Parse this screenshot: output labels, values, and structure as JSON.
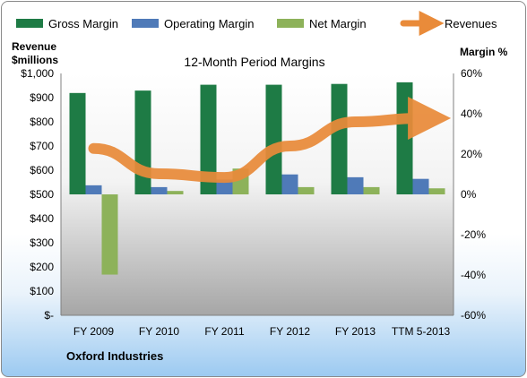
{
  "chart_data": {
    "type": "bar",
    "title": "12-Month Period Margins",
    "company": "Oxford Industries",
    "left_axis_label_line1": "Revenue",
    "left_axis_label_line2": "$millions",
    "right_axis_label": "Margin %",
    "categories": [
      "FY 2009",
      "FY 2010",
      "FY 2011",
      "FY 2012",
      "FY 2013",
      "TTM 5-2013"
    ],
    "left_ticks": [
      "$1,000",
      "$900",
      "$800",
      "$700",
      "$600",
      "$500",
      "$400",
      "$300",
      "$200",
      "$100",
      "$-"
    ],
    "right_ticks": [
      "60%",
      "40%",
      "20%",
      "0%",
      "-20%",
      "-40%",
      "-60%"
    ],
    "ylim_left": [
      0,
      1000
    ],
    "ylim_right": [
      -60,
      60
    ],
    "series": [
      {
        "name": "Gross Margin",
        "axis": "right",
        "color": "#1e7b45",
        "values": [
          50.3,
          51.5,
          54.4,
          54.4,
          54.8,
          55.6
        ]
      },
      {
        "name": "Operating Margin",
        "axis": "right",
        "color": "#4f7ab8",
        "values": [
          4.5,
          3.6,
          7.4,
          9.9,
          8.5,
          7.7
        ]
      },
      {
        "name": "Net Margin",
        "axis": "right",
        "color": "#8db25a",
        "values": [
          -39.8,
          1.7,
          12.8,
          3.6,
          3.6,
          3.0
        ]
      },
      {
        "name": "Revenues",
        "axis": "left",
        "type": "line",
        "color": "#e98b3a",
        "values": [
          690,
          585,
          570,
          700,
          800,
          815
        ]
      }
    ],
    "grid": false,
    "legend_position": "top"
  }
}
